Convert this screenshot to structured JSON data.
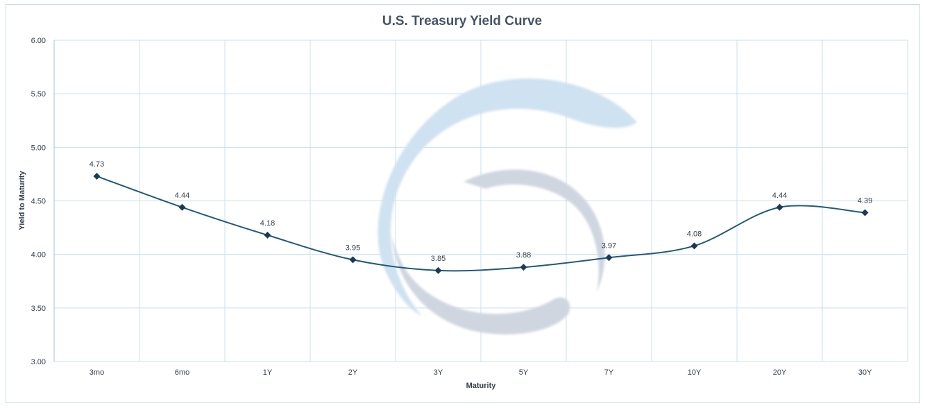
{
  "chart_data": {
    "type": "line",
    "title": "U.S. Treasury Yield Curve",
    "xlabel": "Maturity",
    "ylabel": "Yield to Maturity",
    "categories": [
      "3mo",
      "6mo",
      "1Y",
      "2Y",
      "3Y",
      "5Y",
      "7Y",
      "10Y",
      "20Y",
      "30Y"
    ],
    "series": [
      {
        "name": "Yield",
        "values": [
          4.73,
          4.44,
          4.18,
          3.95,
          3.85,
          3.88,
          3.97,
          4.08,
          4.44,
          4.39
        ],
        "smooth": true
      }
    ],
    "data_labels": [
      "4.73",
      "4.44",
      "4.18",
      "3.95",
      "3.85",
      "3.88",
      "3.97",
      "4.08",
      "4.44",
      "4.39"
    ],
    "ylim": [
      3.0,
      6.0
    ],
    "yticks": [
      "3.00",
      "3.50",
      "4.00",
      "4.50",
      "5.00",
      "5.50",
      "6.00"
    ],
    "grid": true,
    "legend": "none",
    "colors": {
      "line": "#1f5a7a",
      "marker": "#1b3a57",
      "grid": "#c9dff2",
      "title": "#44546a"
    }
  }
}
